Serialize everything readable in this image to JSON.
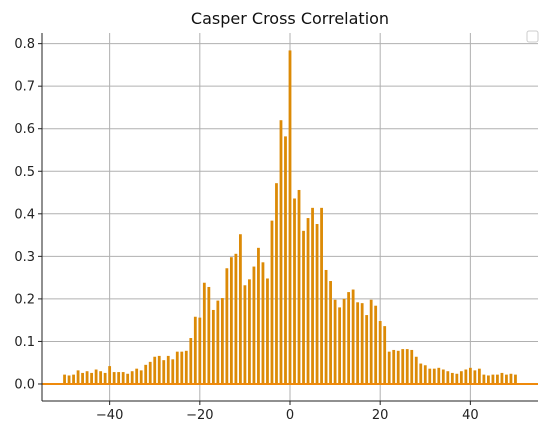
{
  "chart_data": {
    "type": "bar",
    "title": "Casper Cross Correlation",
    "xlabel": "",
    "ylabel": "",
    "xlim": [
      -55,
      55
    ],
    "ylim": [
      -0.04,
      0.825
    ],
    "xticks": [
      -40,
      -20,
      0,
      20,
      40
    ],
    "yticks": [
      0.0,
      0.1,
      0.2,
      0.3,
      0.4,
      0.5,
      0.6,
      0.7,
      0.8
    ],
    "xtick_labels": [
      "−40",
      "−20",
      "0",
      "20",
      "40"
    ],
    "ytick_labels": [
      "0.0",
      "0.1",
      "0.2",
      "0.3",
      "0.4",
      "0.5",
      "0.6",
      "0.7",
      "0.8"
    ],
    "grid": true,
    "legend_position": "top-right",
    "colors": {
      "bars": "#dc8a06",
      "baseline": "#ef8a0c",
      "grid": "#b0b0b0",
      "axis": "#222222"
    },
    "x": [
      -50,
      -49,
      -48,
      -47,
      -46,
      -45,
      -44,
      -43,
      -42,
      -41,
      -40,
      -39,
      -38,
      -37,
      -36,
      -35,
      -34,
      -33,
      -32,
      -31,
      -30,
      -29,
      -28,
      -27,
      -26,
      -25,
      -24,
      -23,
      -22,
      -21,
      -20,
      -19,
      -18,
      -17,
      -16,
      -15,
      -14,
      -13,
      -12,
      -11,
      -10,
      -9,
      -8,
      -7,
      -6,
      -5,
      -4,
      -3,
      -2,
      -1,
      0,
      1,
      2,
      3,
      4,
      5,
      6,
      7,
      8,
      9,
      10,
      11,
      12,
      13,
      14,
      15,
      16,
      17,
      18,
      19,
      20,
      21,
      22,
      23,
      24,
      25,
      26,
      27,
      28,
      29,
      30,
      31,
      32,
      33,
      34,
      35,
      36,
      37,
      38,
      39,
      40,
      41,
      42,
      43,
      44,
      45,
      46,
      47,
      48,
      49,
      50
    ],
    "values": [
      0.022,
      0.02,
      0.022,
      0.032,
      0.026,
      0.03,
      0.026,
      0.034,
      0.03,
      0.026,
      0.042,
      0.028,
      0.028,
      0.028,
      0.024,
      0.03,
      0.036,
      0.032,
      0.045,
      0.052,
      0.064,
      0.066,
      0.056,
      0.066,
      0.058,
      0.076,
      0.076,
      0.078,
      0.108,
      0.158,
      0.156,
      0.238,
      0.228,
      0.174,
      0.196,
      0.202,
      0.272,
      0.298,
      0.306,
      0.352,
      0.232,
      0.246,
      0.276,
      0.32,
      0.286,
      0.248,
      0.384,
      0.472,
      0.62,
      0.582,
      0.784,
      0.436,
      0.456,
      0.36,
      0.39,
      0.414,
      0.376,
      0.414,
      0.268,
      0.242,
      0.198,
      0.18,
      0.2,
      0.216,
      0.222,
      0.192,
      0.19,
      0.162,
      0.198,
      0.184,
      0.148,
      0.136,
      0.076,
      0.08,
      0.078,
      0.082,
      0.082,
      0.08,
      0.064,
      0.048,
      0.044,
      0.036,
      0.036,
      0.038,
      0.034,
      0.03,
      0.026,
      0.024,
      0.03,
      0.034,
      0.038,
      0.032,
      0.036,
      0.022,
      0.02,
      0.022,
      0.022,
      0.026,
      0.022,
      0.024,
      0.022
    ]
  }
}
